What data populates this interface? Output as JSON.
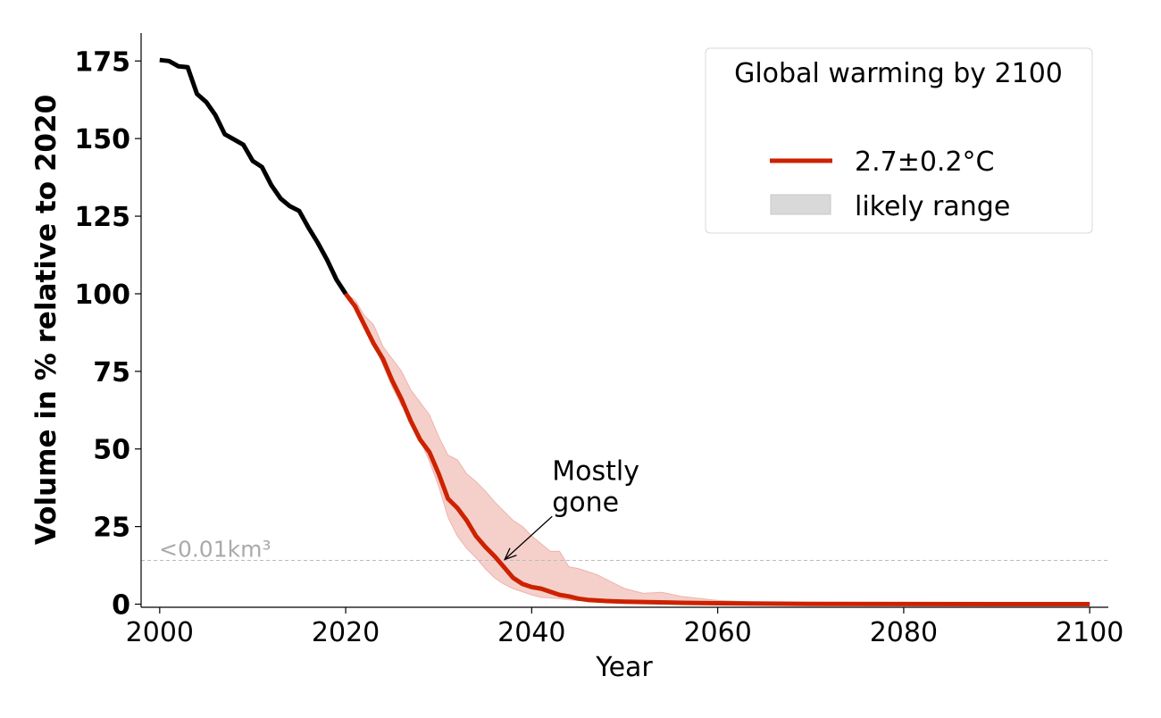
{
  "chart_data": {
    "type": "line",
    "title": "",
    "xlabel": "Year",
    "ylabel": "Volume in % relative to 2020",
    "xlim": [
      1998,
      2102
    ],
    "ylim": [
      -1,
      184
    ],
    "xticks": [
      2000,
      2020,
      2040,
      2060,
      2080,
      2100
    ],
    "yticks": [
      0,
      25,
      50,
      75,
      100,
      125,
      150,
      175
    ],
    "grid": false,
    "colors": {
      "historical": "#000000",
      "projection": "#cc2200",
      "band": "#f0a8a0",
      "threshold": "#bbbbbb"
    },
    "historical": {
      "x": [
        2000,
        2001,
        2002,
        2003,
        2004,
        2005,
        2006,
        2007,
        2008,
        2009,
        2010,
        2011,
        2012,
        2013,
        2014,
        2015,
        2016,
        2017,
        2018,
        2019,
        2020
      ],
      "y": [
        175.3,
        175,
        173.3,
        173,
        164.4,
        161.8,
        157.5,
        151.4,
        149.7,
        148,
        142.8,
        140.8,
        135,
        130.7,
        128.2,
        126.7,
        121.3,
        116.4,
        110.9,
        104.6,
        100
      ]
    },
    "series": [
      {
        "name": "2.7±0.2°C",
        "x": [
          2020,
          2021,
          2022,
          2023,
          2024,
          2025,
          2026,
          2027,
          2028,
          2029,
          2030,
          2031,
          2032,
          2033,
          2034,
          2035,
          2036,
          2037,
          2038,
          2039,
          2040,
          2041,
          2042,
          2043,
          2044,
          2045,
          2046,
          2047,
          2048,
          2050,
          2055,
          2060,
          2070,
          2080,
          2090,
          2100
        ],
        "y": [
          100,
          96,
          90,
          84,
          79,
          72,
          66,
          59,
          53,
          49,
          42,
          34,
          31,
          27,
          22,
          18.5,
          15.5,
          12,
          8.5,
          6.5,
          5.5,
          5,
          4,
          3,
          2.5,
          1.8,
          1.4,
          1.2,
          1.0,
          0.8,
          0.5,
          0.3,
          0.1,
          0.05,
          0.02,
          0
        ]
      }
    ],
    "band": {
      "name": "likely range",
      "upper": {
        "x": [
          2020,
          2021,
          2022,
          2023,
          2024,
          2025,
          2026,
          2027,
          2028,
          2029,
          2030,
          2031,
          2032,
          2033,
          2034,
          2035,
          2036,
          2037,
          2038,
          2039,
          2040,
          2041,
          2042,
          2043,
          2044,
          2045,
          2046,
          2047,
          2048,
          2049,
          2050,
          2052,
          2054,
          2056,
          2060,
          2065,
          2070,
          2100
        ],
        "y": [
          100,
          98,
          93,
          90,
          83,
          79,
          75,
          69,
          65,
          61,
          54,
          48,
          46.5,
          42,
          39.5,
          36.5,
          33,
          30,
          27,
          25,
          22,
          19.5,
          17,
          17,
          12,
          11.5,
          10.5,
          9.5,
          8,
          6.5,
          5,
          3.5,
          3.8,
          2.5,
          1.2,
          0.5,
          0.2,
          0
        ]
      },
      "lower": {
        "x": [
          2020,
          2021,
          2022,
          2023,
          2024,
          2025,
          2026,
          2027,
          2028,
          2029,
          2030,
          2031,
          2032,
          2033,
          2034,
          2035,
          2036,
          2037,
          2038,
          2039,
          2040,
          2041,
          2042,
          2043,
          2044,
          2045,
          2050,
          2060,
          2100
        ],
        "y": [
          100,
          98,
          91,
          84,
          77,
          70,
          64,
          60,
          53,
          46,
          38,
          28,
          22,
          18,
          15,
          11.5,
          8.5,
          6.5,
          5,
          4,
          3,
          2.2,
          2,
          1.8,
          1.4,
          1.2,
          0.6,
          0.2,
          0
        ]
      }
    },
    "threshold": {
      "y": 14.1,
      "label": "<0.01km³"
    },
    "annotation": {
      "text_lines": [
        "Mostly",
        "gone"
      ],
      "point": [
        2037.1,
        14.4
      ],
      "text_at": [
        2042.2,
        30
      ]
    },
    "legend": {
      "title": "Global warming by 2100",
      "placement": "top-right",
      "entries": [
        {
          "label": "2.7±0.2°C",
          "kind": "line"
        },
        {
          "label": "likely range",
          "kind": "patch"
        }
      ]
    }
  }
}
